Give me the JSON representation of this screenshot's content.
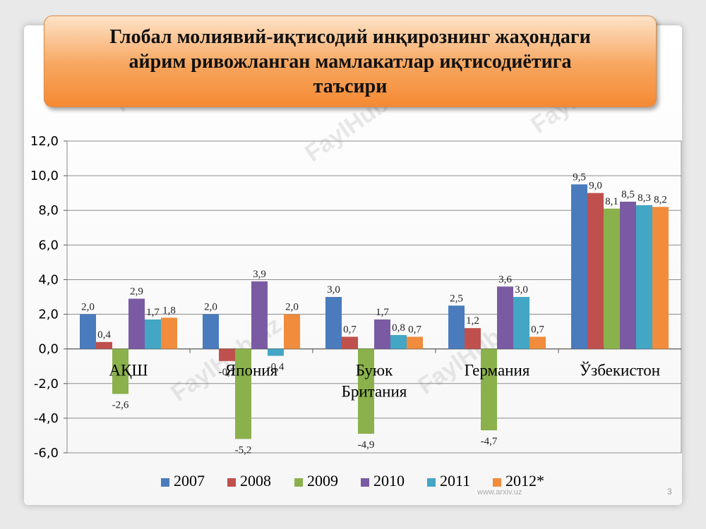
{
  "title": "Глобал молиявий-иқтисодий инқирознинг жаҳондаги\nайрим ривожланган мамлакатлар иқтисодиётига\nтаъсири",
  "footer": "www.arxiv.uz",
  "page_number": "3",
  "watermark": "FaylHub.uz",
  "chart_data": {
    "type": "bar",
    "categories": [
      "АҚШ",
      "Япония",
      "Буюк Британия",
      "Германия",
      "Ўзбекистон"
    ],
    "category_lines": [
      [
        "АҚШ"
      ],
      [
        "Япония"
      ],
      [
        "Буюк",
        "Британия"
      ],
      [
        "Германия"
      ],
      [
        "Ўзбекистон"
      ]
    ],
    "series": [
      {
        "name": "2007",
        "color": "#4a7bbd",
        "values": [
          2.0,
          2.0,
          3.0,
          2.5,
          9.5
        ],
        "labels": [
          "2,0",
          "2,0",
          "3,0",
          "2,5",
          "9,5"
        ]
      },
      {
        "name": "2008",
        "color": "#c0504d",
        "values": [
          0.4,
          -0.7,
          0.7,
          1.2,
          9.0
        ],
        "labels": [
          "0,4",
          "-0,7",
          "0,7",
          "1,2",
          "9,0"
        ]
      },
      {
        "name": "2009",
        "color": "#8bb14c",
        "values": [
          -2.6,
          -5.2,
          -4.9,
          -4.7,
          8.1
        ],
        "labels": [
          "-2,6",
          "-5,2",
          "-4,9",
          "-4,7",
          "8,1"
        ]
      },
      {
        "name": "2010",
        "color": "#7a5ba3",
        "values": [
          2.9,
          3.9,
          1.7,
          3.6,
          8.5
        ],
        "labels": [
          "2,9",
          "3,9",
          "1,7",
          "3,6",
          "8,5"
        ]
      },
      {
        "name": "2011",
        "color": "#43a6c4",
        "values": [
          1.7,
          -0.4,
          0.8,
          3.0,
          8.3
        ],
        "labels": [
          "1,7",
          "-0,4",
          "0,8",
          "3,0",
          "8,3"
        ]
      },
      {
        "name": "2012*",
        "color": "#f08c3c",
        "values": [
          1.8,
          2.0,
          0.7,
          0.7,
          8.2
        ],
        "labels": [
          "1,8",
          "2,0",
          "0,7",
          "0,7",
          "8,2"
        ]
      }
    ],
    "ylim": [
      -6,
      12
    ],
    "yticks": [
      -6,
      -4,
      -2,
      0,
      2,
      4,
      6,
      8,
      10,
      12
    ],
    "ytick_labels": [
      "-6,0",
      "-4,0",
      "-2,0",
      "0,0",
      "2,0",
      "4,0",
      "6,0",
      "8,0",
      "10,0",
      "12,0"
    ],
    "grid": true,
    "legend": "bottom"
  }
}
